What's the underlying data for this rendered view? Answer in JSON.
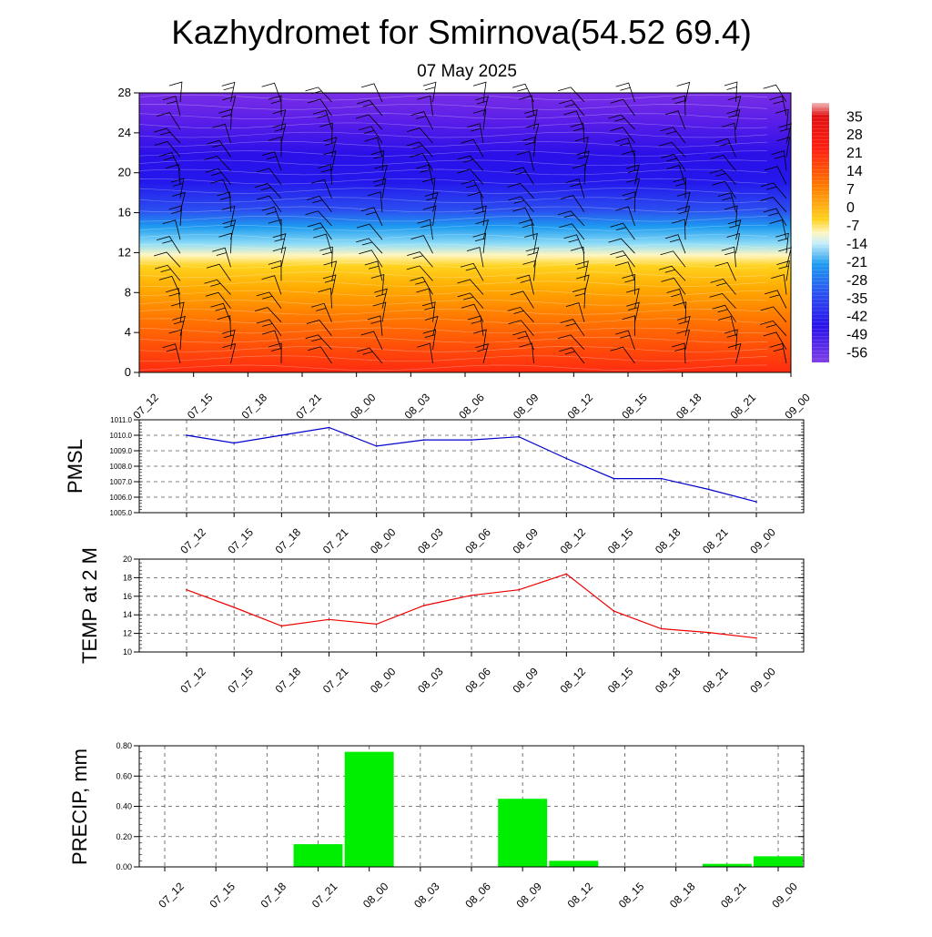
{
  "title": "Kazhydromet for Smirnova(54.52 69.4)",
  "date": "07 May 2025",
  "time_labels": [
    "07_12",
    "07_15",
    "07_18",
    "07_21",
    "08_00",
    "08_03",
    "08_06",
    "08_09",
    "08_12",
    "08_15",
    "08_18",
    "08_21",
    "09_00"
  ],
  "chart_data": [
    {
      "type": "heatmap",
      "y_ticks": [
        "0",
        "4",
        "8",
        "12",
        "16",
        "20",
        "24",
        "28"
      ],
      "ylim": [
        0,
        28
      ],
      "colorbar_labels": [
        "35",
        "28",
        "21",
        "14",
        "7",
        "0",
        "-7",
        "-14",
        "-21",
        "-28",
        "-35",
        "-42",
        "-49",
        "-56"
      ],
      "colorbar_range": [
        -60,
        40
      ]
    },
    {
      "type": "line",
      "ylabel": "PMSL",
      "ylim": [
        1005.0,
        1011.0
      ],
      "y_ticks": [
        "1005.0",
        "1006.0",
        "1007.0",
        "1008.0",
        "1009.0",
        "1010.0",
        "1011.0"
      ],
      "color": "#0000cc",
      "values": [
        1010.0,
        1009.5,
        1010.0,
        1010.5,
        1009.3,
        1009.7,
        1009.7,
        1009.9,
        1008.5,
        1007.2,
        1007.2,
        1006.5,
        1005.7
      ]
    },
    {
      "type": "line",
      "ylabel": "TEMP at 2 M",
      "ylim": [
        10,
        20
      ],
      "y_ticks": [
        "10",
        "12",
        "14",
        "16",
        "18",
        "20"
      ],
      "color": "#ee0000",
      "values": [
        16.7,
        14.8,
        12.8,
        13.5,
        13.0,
        15.0,
        16.1,
        16.7,
        18.4,
        14.4,
        12.5,
        12.1,
        11.5
      ]
    },
    {
      "type": "bar",
      "ylabel": "PRECIP, mm",
      "ylim": [
        0,
        0.8
      ],
      "y_ticks": [
        "0.00",
        "0.20",
        "0.40",
        "0.60",
        "0.80"
      ],
      "color": "#00ee00",
      "values": [
        0,
        0,
        0,
        0.15,
        0.76,
        0,
        0,
        0.45,
        0.04,
        0,
        0,
        0.02,
        0.07
      ]
    }
  ]
}
